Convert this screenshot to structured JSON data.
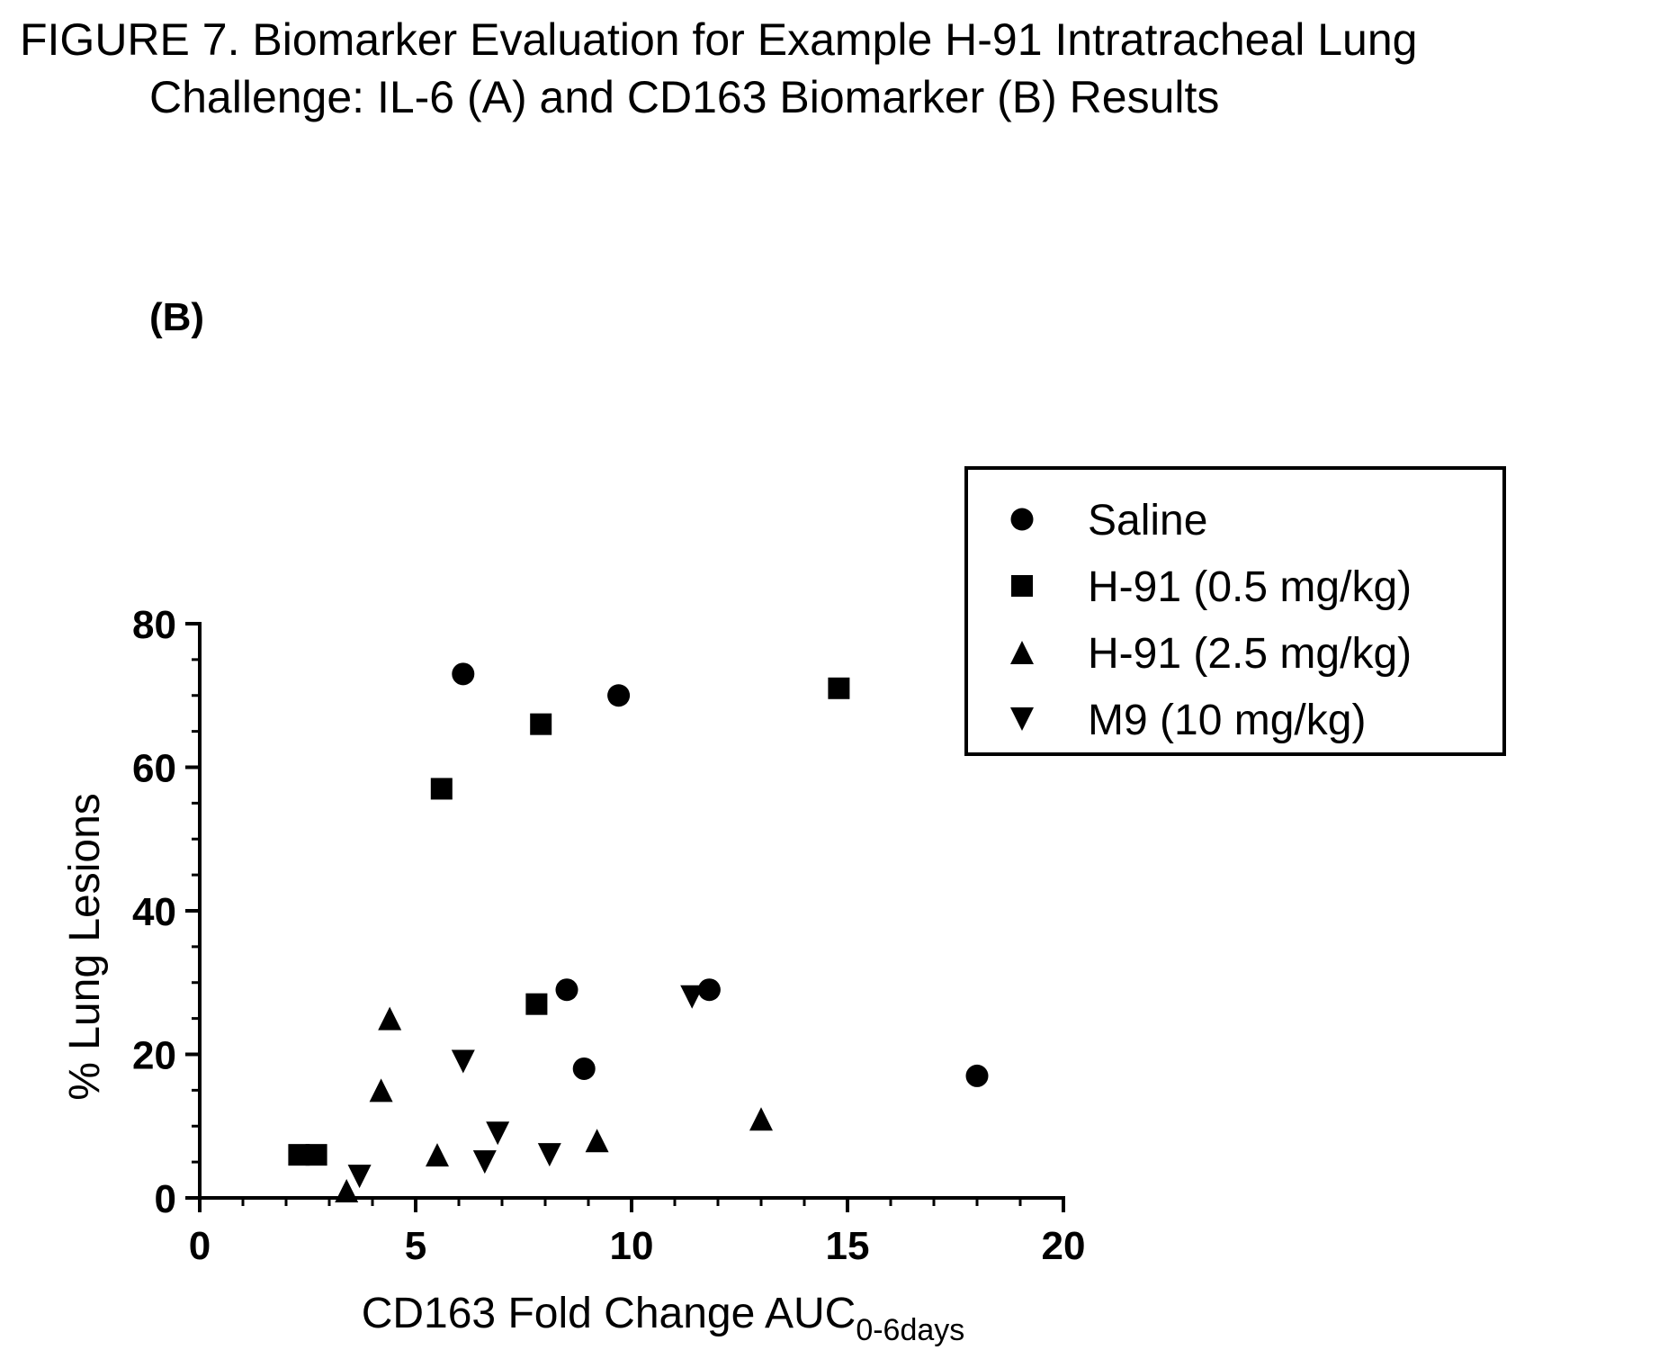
{
  "figure": {
    "title_line1": "FIGURE 7. Biomarker Evaluation for Example H-91 Intratracheal Lung",
    "title_line2": "Challenge: IL-6 (A) and CD163 Biomarker (B) Results",
    "panel_label": "(B)"
  },
  "chart_data": {
    "type": "scatter",
    "xlabel": "CD163 Fold Change AUC",
    "xlabel_subscript": "0-6days",
    "ylabel": "% Lung Lesions",
    "xlim": [
      0,
      20
    ],
    "ylim": [
      0,
      80
    ],
    "x_ticks": [
      0,
      5,
      10,
      15,
      20
    ],
    "y_ticks": [
      0,
      20,
      40,
      60,
      80
    ],
    "grid": false,
    "legend_position": "top-right",
    "series": [
      {
        "name": "Saline",
        "marker": "circle",
        "points": [
          [
            6.1,
            73
          ],
          [
            9.7,
            70
          ],
          [
            8.5,
            29
          ],
          [
            11.8,
            29
          ],
          [
            8.9,
            18
          ],
          [
            18.0,
            17
          ]
        ]
      },
      {
        "name": "H-91 (0.5 mg/kg)",
        "marker": "square",
        "points": [
          [
            14.8,
            71
          ],
          [
            7.9,
            66
          ],
          [
            5.6,
            57
          ],
          [
            7.8,
            27
          ],
          [
            2.3,
            6
          ],
          [
            2.7,
            6
          ]
        ]
      },
      {
        "name": "H-91 (2.5 mg/kg)",
        "marker": "triangle-up",
        "points": [
          [
            4.4,
            25
          ],
          [
            4.2,
            15
          ],
          [
            13.0,
            11
          ],
          [
            9.2,
            8
          ],
          [
            5.5,
            6
          ],
          [
            3.4,
            1
          ]
        ]
      },
      {
        "name": "M9 (10 mg/kg)",
        "marker": "triangle-down",
        "points": [
          [
            11.4,
            28
          ],
          [
            6.1,
            19
          ],
          [
            6.9,
            9
          ],
          [
            6.6,
            5
          ],
          [
            8.1,
            6
          ],
          [
            3.7,
            3
          ]
        ]
      }
    ]
  }
}
